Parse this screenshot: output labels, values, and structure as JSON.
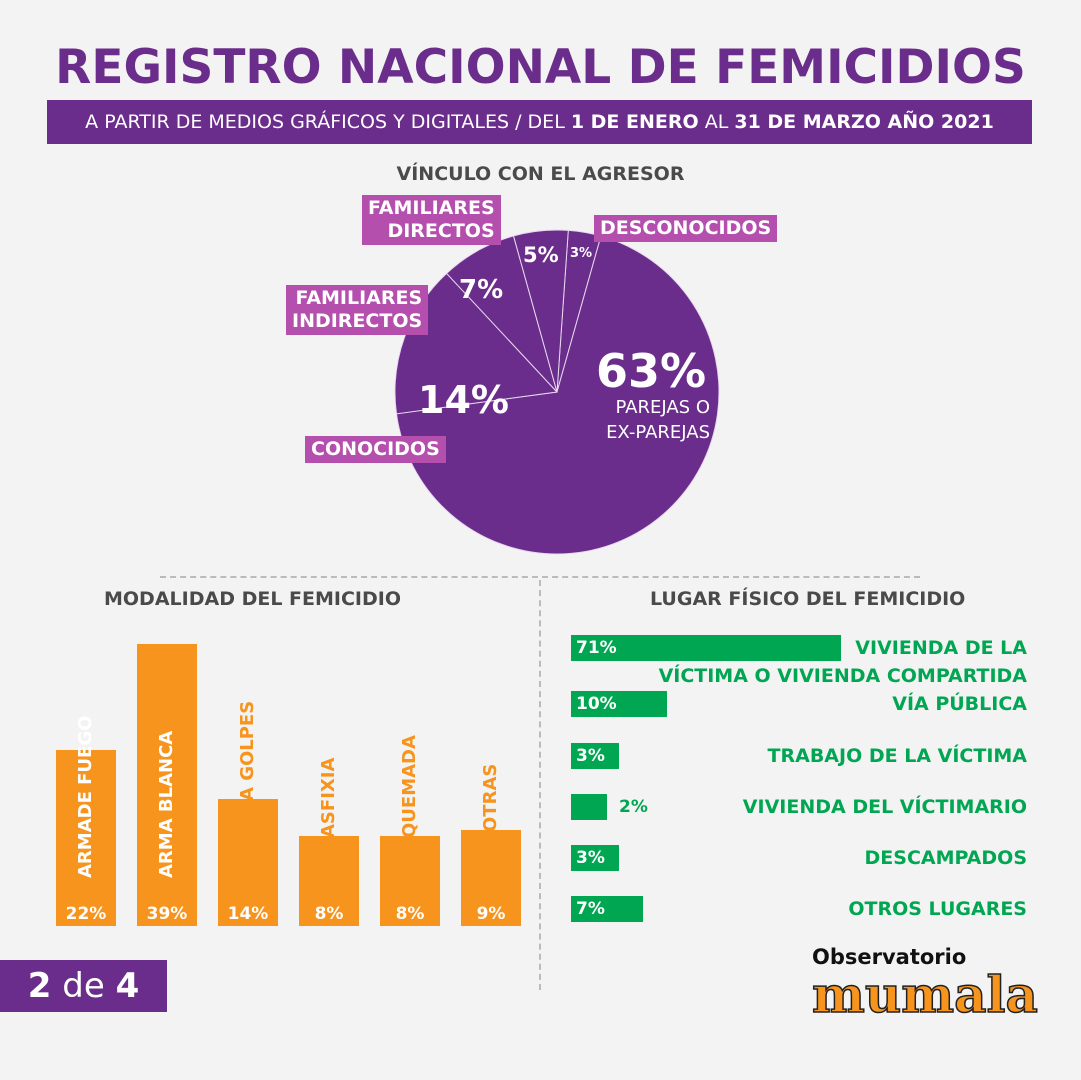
{
  "title": "REGISTRO NACIONAL DE FEMICIDIOS",
  "subtitle": {
    "part1": "A PARTIR DE MEDIOS GRÁFICOS Y DIGITALES / DEL ",
    "bold1": "1 DE ENERO",
    "part2": " AL ",
    "bold2": "31 DE MARZO AÑO 2021"
  },
  "colors": {
    "purple": "#6b2d8b",
    "pink": "#b44fad",
    "orange": "#f7941d",
    "green": "#00a651"
  },
  "chart_data": [
    {
      "type": "pie",
      "title": "VÍNCULO CON EL AGRESOR",
      "slices": [
        {
          "label": "DESCONOCIDOS",
          "value": 3,
          "text": "3%"
        },
        {
          "label": "PAREJAS O EX-PAREJAS",
          "label1": "PAREJAS O",
          "label2": "EX-PAREJAS",
          "value": 63,
          "text": "63%"
        },
        {
          "label": "CONOCIDOS",
          "value": 14,
          "text": "14%"
        },
        {
          "label": "FAMILIARES INDIRECTOS",
          "label1": "FAMILIARES",
          "label2": "INDIRECTOS",
          "value": 7,
          "text": "7%"
        },
        {
          "label": "FAMILIARES DIRECTOS",
          "label1": "FAMILIARES",
          "label2": "DIRECTOS",
          "value": 5,
          "text": "5%"
        }
      ]
    },
    {
      "type": "bar",
      "title": "MODALIDAD DEL FEMICIDIO",
      "categories": [
        "ARMADE FUEGO",
        "ARMA BLANCA",
        "A GOLPES",
        "ASFIXIA",
        "QUEMADA",
        "OTRAS"
      ],
      "values": [
        22,
        39,
        14,
        8,
        8,
        9
      ],
      "labels": [
        "22%",
        "39%",
        "14%",
        "8%",
        "8%",
        "9%"
      ]
    },
    {
      "type": "bar",
      "orientation": "horizontal",
      "title": "LUGAR FÍSICO DEL FEMICIDIO",
      "categories": [
        [
          "VIVIENDA DE LA",
          "VÍCTIMA O VIVIENDA COMPARTIDA"
        ],
        [
          "VÍA PÚBLICA"
        ],
        [
          "TRABAJO DE LA VÍCTIMA"
        ],
        [
          "VIVIENDA DEL VÍCTIMARIO"
        ],
        [
          "DESCAMPADOS"
        ],
        [
          "OTROS LUGARES"
        ]
      ],
      "values": [
        71,
        10,
        3,
        2,
        3,
        7
      ],
      "labels": [
        "71%",
        "10%",
        "3%",
        "2%",
        "3%",
        "7%"
      ]
    }
  ],
  "pagination": {
    "current": "2",
    "sep": "de",
    "total": "4"
  },
  "logo": {
    "line1": "Observatorio",
    "line2": "mumala"
  }
}
